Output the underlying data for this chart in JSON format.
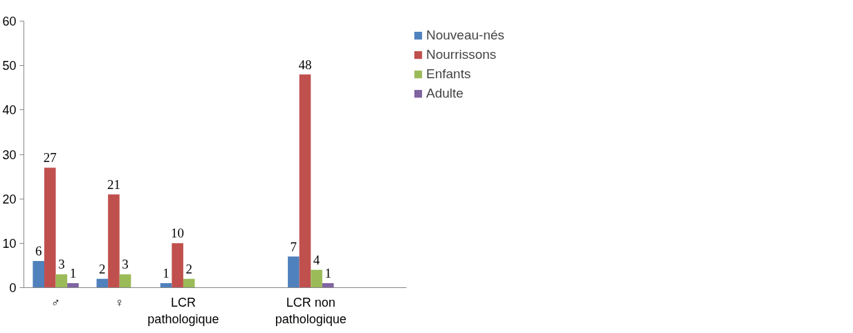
{
  "chart_data": {
    "type": "bar",
    "categories": [
      "♂",
      "♀",
      "LCR pathologique",
      null,
      "LCR non pathologique",
      null
    ],
    "series": [
      {
        "name": "Nouveau-nés",
        "color": "#4f81bd",
        "values": [
          6,
          2,
          1,
          null,
          7,
          null
        ]
      },
      {
        "name": "Nourrissons",
        "color": "#c0504d",
        "values": [
          27,
          21,
          10,
          null,
          48,
          null
        ]
      },
      {
        "name": "Enfants",
        "color": "#9bbb59",
        "values": [
          3,
          3,
          2,
          null,
          4,
          null
        ]
      },
      {
        "name": "Adulte",
        "color": "#8064a2",
        "values": [
          1,
          null,
          null,
          null,
          1,
          null
        ]
      }
    ],
    "ylim": [
      0,
      60
    ],
    "yticks": [
      0,
      10,
      20,
      30,
      40,
      50,
      60
    ],
    "grid": false,
    "legend": "top right",
    "data_labels": true
  }
}
